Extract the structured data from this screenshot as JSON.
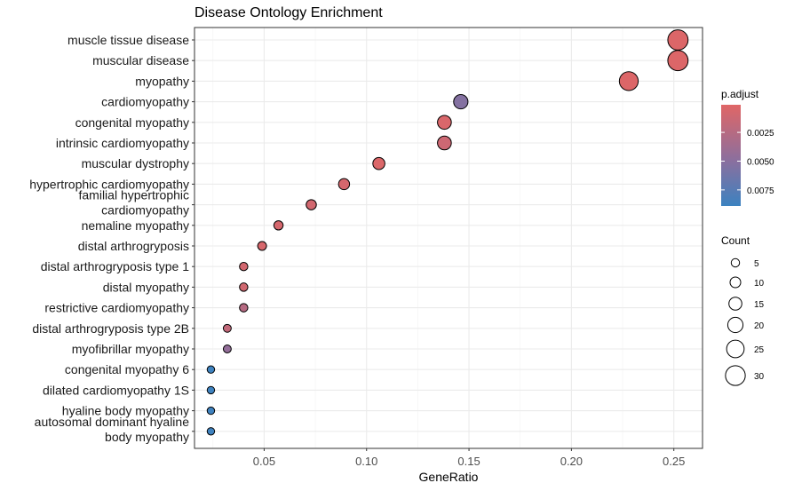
{
  "chart_data": {
    "type": "scatter",
    "title": "Disease Ontology Enrichment",
    "xlabel": "GeneRatio",
    "ylabel": "",
    "xlim": [
      0.016,
      0.264
    ],
    "xticks": [
      0.05,
      0.1,
      0.15,
      0.2,
      0.25
    ],
    "xtick_labels": [
      "0.05",
      "0.10",
      "0.15",
      "0.20",
      "0.25"
    ],
    "grid": true,
    "legend_placement": "right",
    "categories": [
      {
        "label": [
          "muscle tissue disease"
        ],
        "gene_ratio": 0.252,
        "count": 31,
        "p_adjust": 0.0003
      },
      {
        "label": [
          "muscular disease"
        ],
        "gene_ratio": 0.252,
        "count": 31,
        "p_adjust": 0.0003
      },
      {
        "label": [
          "myopathy"
        ],
        "gene_ratio": 0.228,
        "count": 28,
        "p_adjust": 0.0003
      },
      {
        "label": [
          "cardiomyopathy"
        ],
        "gene_ratio": 0.146,
        "count": 18,
        "p_adjust": 0.0053
      },
      {
        "label": [
          "congenital myopathy"
        ],
        "gene_ratio": 0.138,
        "count": 17,
        "p_adjust": 0.0005
      },
      {
        "label": [
          "intrinsic cardiomyopathy"
        ],
        "gene_ratio": 0.138,
        "count": 17,
        "p_adjust": 0.0012
      },
      {
        "label": [
          "muscular dystrophy"
        ],
        "gene_ratio": 0.106,
        "count": 13,
        "p_adjust": 0.0004
      },
      {
        "label": [
          "hypertrophic cardiomyopathy"
        ],
        "gene_ratio": 0.089,
        "count": 11,
        "p_adjust": 0.0007
      },
      {
        "label": [
          "familial hypertrophic",
          "cardiomyopathy"
        ],
        "gene_ratio": 0.073,
        "count": 9,
        "p_adjust": 0.0009
      },
      {
        "label": [
          "nemaline myopathy"
        ],
        "gene_ratio": 0.057,
        "count": 7,
        "p_adjust": 0.0007
      },
      {
        "label": [
          "distal arthrogryposis"
        ],
        "gene_ratio": 0.049,
        "count": 6,
        "p_adjust": 0.0006
      },
      {
        "label": [
          "distal arthrogryposis type 1"
        ],
        "gene_ratio": 0.04,
        "count": 5,
        "p_adjust": 0.0009
      },
      {
        "label": [
          "distal myopathy"
        ],
        "gene_ratio": 0.04,
        "count": 5,
        "p_adjust": 0.001
      },
      {
        "label": [
          "restrictive cardiomyopathy"
        ],
        "gene_ratio": 0.04,
        "count": 5,
        "p_adjust": 0.0025
      },
      {
        "label": [
          "distal arthrogryposis type 2B"
        ],
        "gene_ratio": 0.032,
        "count": 4,
        "p_adjust": 0.0018
      },
      {
        "label": [
          "myofibrillar myopathy"
        ],
        "gene_ratio": 0.032,
        "count": 4,
        "p_adjust": 0.0045
      },
      {
        "label": [
          "congenital myopathy 6"
        ],
        "gene_ratio": 0.024,
        "count": 3,
        "p_adjust": 0.0088
      },
      {
        "label": [
          "dilated cardiomyopathy 1S"
        ],
        "gene_ratio": 0.024,
        "count": 3,
        "p_adjust": 0.0088
      },
      {
        "label": [
          "hyaline body myopathy"
        ],
        "gene_ratio": 0.024,
        "count": 3,
        "p_adjust": 0.0088
      },
      {
        "label": [
          "autosomal dominant hyaline",
          "body myopathy"
        ],
        "gene_ratio": 0.024,
        "count": 3,
        "p_adjust": 0.0088
      }
    ],
    "color_legend": {
      "title": "p.adjust",
      "ticks": [
        0.0025,
        0.005,
        0.0075
      ],
      "tick_labels": [
        "0.0025",
        "0.0050",
        "0.0075"
      ],
      "range": [
        0.0001,
        0.0089
      ],
      "low_color": "#E06666",
      "mid_color": "#8B6F9E",
      "high_color": "#3C82C0"
    },
    "size_legend": {
      "title": "Count",
      "values": [
        5,
        10,
        15,
        20,
        25,
        30
      ],
      "labels": [
        "5",
        "10",
        "15",
        "20",
        "25",
        "30"
      ]
    }
  }
}
